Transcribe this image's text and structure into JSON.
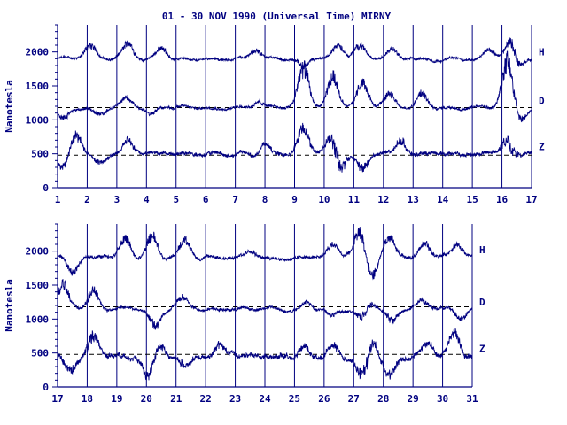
{
  "chart_data": [
    {
      "type": "line",
      "title": "01 - 30 NOV 1990 (Universal Time) MIRNY",
      "ylabel": "Nanotesla",
      "xlim": [
        1,
        17
      ],
      "ylim": [
        0,
        2400
      ],
      "x_ticks": [
        "1",
        "2",
        "3",
        "4",
        "5",
        "6",
        "7",
        "8",
        "9",
        "10",
        "11",
        "12",
        "13",
        "14",
        "15",
        "16",
        "17"
      ],
      "y_ticks": [
        0,
        500,
        1000,
        1500,
        2000
      ],
      "grid": "vertical-daily",
      "series": [
        {
          "name": "H",
          "baseline": 1900,
          "noise": 30,
          "events": [
            [
              2.1,
              180
            ],
            [
              3.4,
              200
            ],
            [
              4.5,
              150
            ],
            [
              7.7,
              120
            ],
            [
              9.3,
              -120
            ],
            [
              10.5,
              160
            ],
            [
              11.2,
              180
            ],
            [
              12.3,
              120
            ],
            [
              15.6,
              140
            ],
            [
              16.3,
              300
            ],
            [
              16.5,
              -150
            ]
          ]
        },
        {
          "name": "D",
          "baseline": 1180,
          "dashed_ref": 1180,
          "noise": 30,
          "events": [
            [
              1.2,
              -150
            ],
            [
              2.4,
              -100
            ],
            [
              3.3,
              120
            ],
            [
              4.2,
              -100
            ],
            [
              7.8,
              100
            ],
            [
              9.3,
              550
            ],
            [
              10.3,
              420
            ],
            [
              11.3,
              330
            ],
            [
              12.2,
              200
            ],
            [
              13.3,
              200
            ],
            [
              16.2,
              700
            ],
            [
              16.6,
              -200
            ]
          ]
        },
        {
          "name": "Z",
          "baseline": 500,
          "dashed_ref": 480,
          "noise": 45,
          "events": [
            [
              1.2,
              -200
            ],
            [
              1.6,
              300
            ],
            [
              2.4,
              -150
            ],
            [
              3.4,
              200
            ],
            [
              8.0,
              150
            ],
            [
              9.3,
              380
            ],
            [
              10.3,
              330
            ],
            [
              10.5,
              -350
            ],
            [
              11.3,
              -250
            ],
            [
              12.6,
              200
            ],
            [
              16.2,
              350
            ],
            [
              16.3,
              -200
            ]
          ]
        }
      ]
    },
    {
      "type": "line",
      "ylabel": "Nanotesla",
      "xlim": [
        17,
        31
      ],
      "ylim": [
        0,
        2400
      ],
      "x_ticks": [
        "17",
        "18",
        "19",
        "20",
        "21",
        "22",
        "23",
        "24",
        "25",
        "26",
        "27",
        "28",
        "29",
        "30",
        "31"
      ],
      "y_ticks": [
        0,
        500,
        1000,
        1500,
        2000
      ],
      "grid": "vertical-daily",
      "series": [
        {
          "name": "H",
          "baseline": 1920,
          "noise": 40,
          "events": [
            [
              17.5,
              -200
            ],
            [
              19.3,
              250
            ],
            [
              20.2,
              300
            ],
            [
              21.3,
              200
            ],
            [
              23.6,
              100
            ],
            [
              26.3,
              150
            ],
            [
              27.2,
              350
            ],
            [
              27.6,
              -300
            ],
            [
              28.2,
              250
            ],
            [
              29.4,
              200
            ],
            [
              30.5,
              150
            ]
          ]
        },
        {
          "name": "D",
          "baseline": 1150,
          "dashed_ref": 1180,
          "noise": 35,
          "events": [
            [
              17.2,
              350
            ],
            [
              18.2,
              250
            ],
            [
              20.3,
              -250
            ],
            [
              21.2,
              150
            ],
            [
              25.4,
              100
            ],
            [
              26.3,
              -100
            ],
            [
              27.3,
              -200
            ],
            [
              27.5,
              150
            ],
            [
              28.3,
              -200
            ],
            [
              29.3,
              100
            ],
            [
              30.6,
              -150
            ]
          ]
        },
        {
          "name": "Z",
          "baseline": 460,
          "dashed_ref": 480,
          "noise": 60,
          "events": [
            [
              17.4,
              -200
            ],
            [
              18.2,
              300
            ],
            [
              20.1,
              -300
            ],
            [
              20.4,
              200
            ],
            [
              21.3,
              -150
            ],
            [
              22.5,
              150
            ],
            [
              25.3,
              150
            ],
            [
              26.3,
              200
            ],
            [
              27.3,
              -350
            ],
            [
              27.6,
              250
            ],
            [
              28.2,
              -250
            ],
            [
              29.5,
              200
            ],
            [
              30.4,
              300
            ]
          ]
        }
      ]
    }
  ]
}
